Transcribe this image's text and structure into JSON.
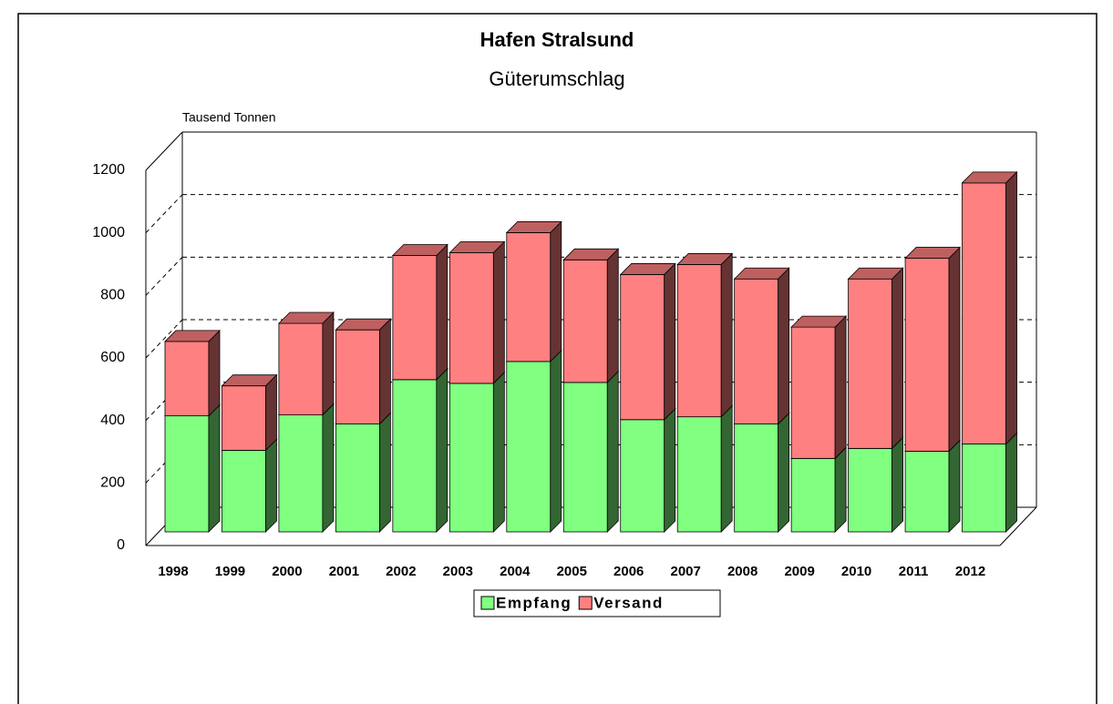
{
  "chart_data": {
    "type": "bar3d_stacked",
    "title": "Hafen Stralsund",
    "subtitle": "Güterumschlag",
    "y_label": "Tausend Tonnen",
    "categories": [
      "1998",
      "1999",
      "2000",
      "2001",
      "2002",
      "2003",
      "2004",
      "2005",
      "2006",
      "2007",
      "2008",
      "2009",
      "2010",
      "2011",
      "2012"
    ],
    "series": [
      {
        "name": "Empfang",
        "color": "#80ff80",
        "values": [
          371,
          261,
          374,
          345,
          487,
          475,
          545,
          478,
          359,
          368,
          345,
          235,
          267,
          258,
          281
        ]
      },
      {
        "name": "Versand",
        "color": "#ff8080",
        "values": [
          238,
          206,
          293,
          301,
          397,
          418,
          412,
          392,
          464,
          487,
          464,
          420,
          542,
          617,
          835
        ]
      }
    ],
    "ylim": [
      0,
      1200
    ],
    "yticks": [
      0,
      200,
      400,
      600,
      800,
      1000,
      1200
    ],
    "grid": true,
    "legend": "bottom"
  }
}
